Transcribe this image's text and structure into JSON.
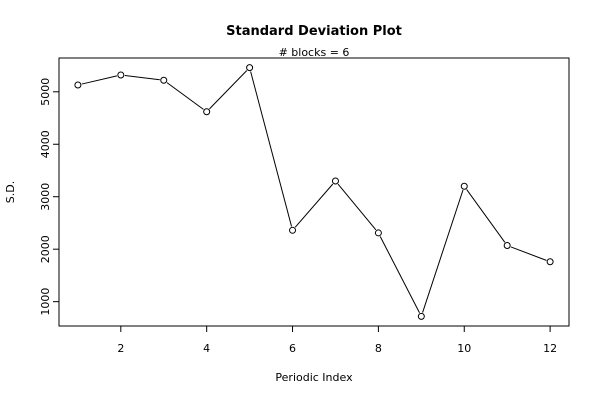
{
  "chart_data": {
    "type": "line",
    "title": "Standard Deviation Plot",
    "subtitle": "# blocks =  6",
    "xlabel": "Periodic Index",
    "ylabel": "S.D.",
    "x": [
      1,
      2,
      3,
      4,
      5,
      6,
      7,
      8,
      9,
      10,
      11,
      12
    ],
    "series": [
      {
        "values": [
          5130,
          5320,
          5220,
          4620,
          5460,
          2360,
          3300,
          2310,
          720,
          3200,
          2070,
          1760
        ]
      }
    ],
    "xlim": [
      0.56,
      12.44
    ],
    "ylim": [
      536,
      5644
    ],
    "xticks": [
      2,
      4,
      6,
      8,
      10,
      12
    ],
    "yticks": [
      1000,
      2000,
      3000,
      4000,
      5000
    ],
    "grid": false,
    "legend": "none",
    "marker": "open-circle",
    "line_color": "#000000"
  }
}
